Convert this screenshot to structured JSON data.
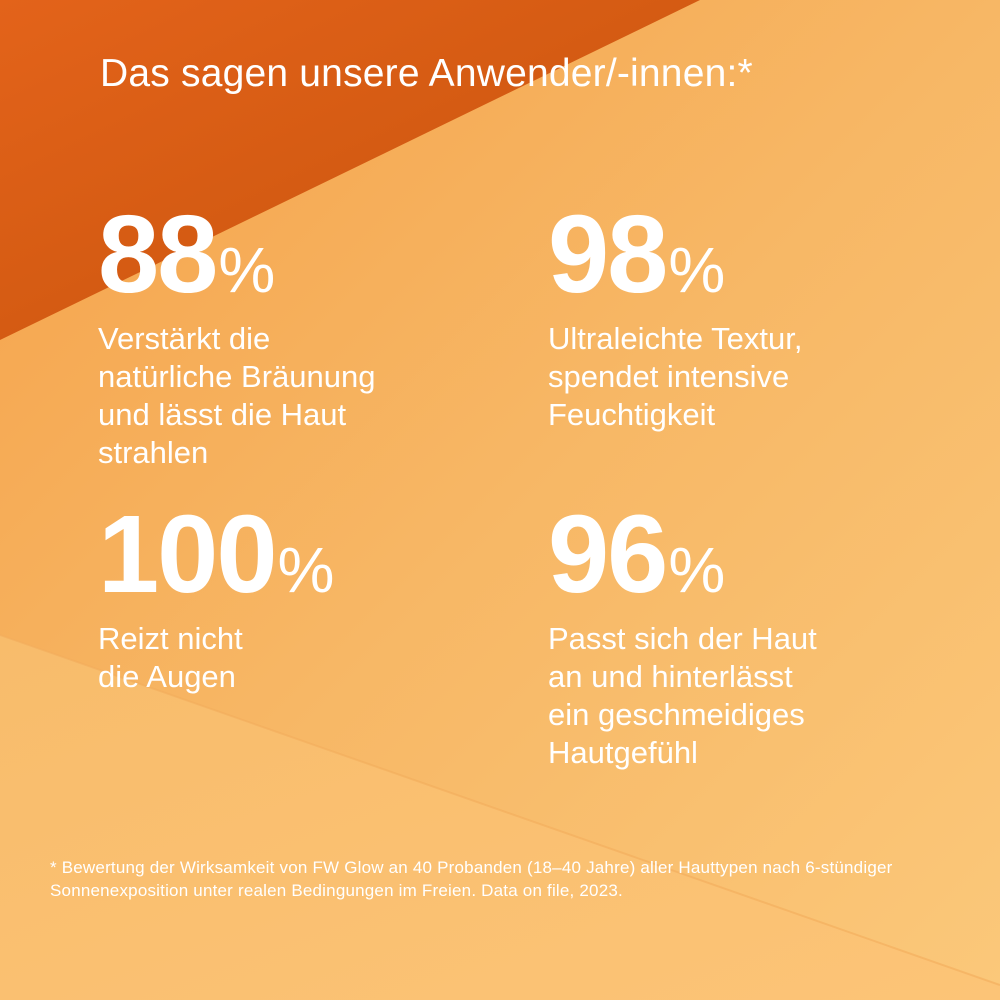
{
  "headline": "Das sagen unsere Anwender/-innen:*",
  "stats": [
    {
      "value": "88",
      "unit": "%",
      "text": "Verstärkt die\nnatürliche Bräunung\nund lässt die Haut\nstrahlen"
    },
    {
      "value": "98",
      "unit": "%",
      "text": "Ultraleichte Textur,\nspendet intensive\nFeuchtigkeit"
    },
    {
      "value": "100",
      "unit": "%",
      "text": "Reizt nicht\ndie Augen"
    },
    {
      "value": "96",
      "unit": "%",
      "text": "Passt sich der Haut\nan und hinterlässt\nein geschmeidiges\nHautgefühl"
    }
  ],
  "footnote": "* Bewertung der Wirksamkeit von FW Glow an 40 Probanden (18–40 Jahre) aller Hauttypen nach 6-stündiger Sonnenexposition unter realen Bedingungen im Freien. Data on file, 2023.",
  "colors": {
    "text": "#ffffff",
    "background_light": "#fbc373",
    "background_dark": "#d9591a"
  }
}
